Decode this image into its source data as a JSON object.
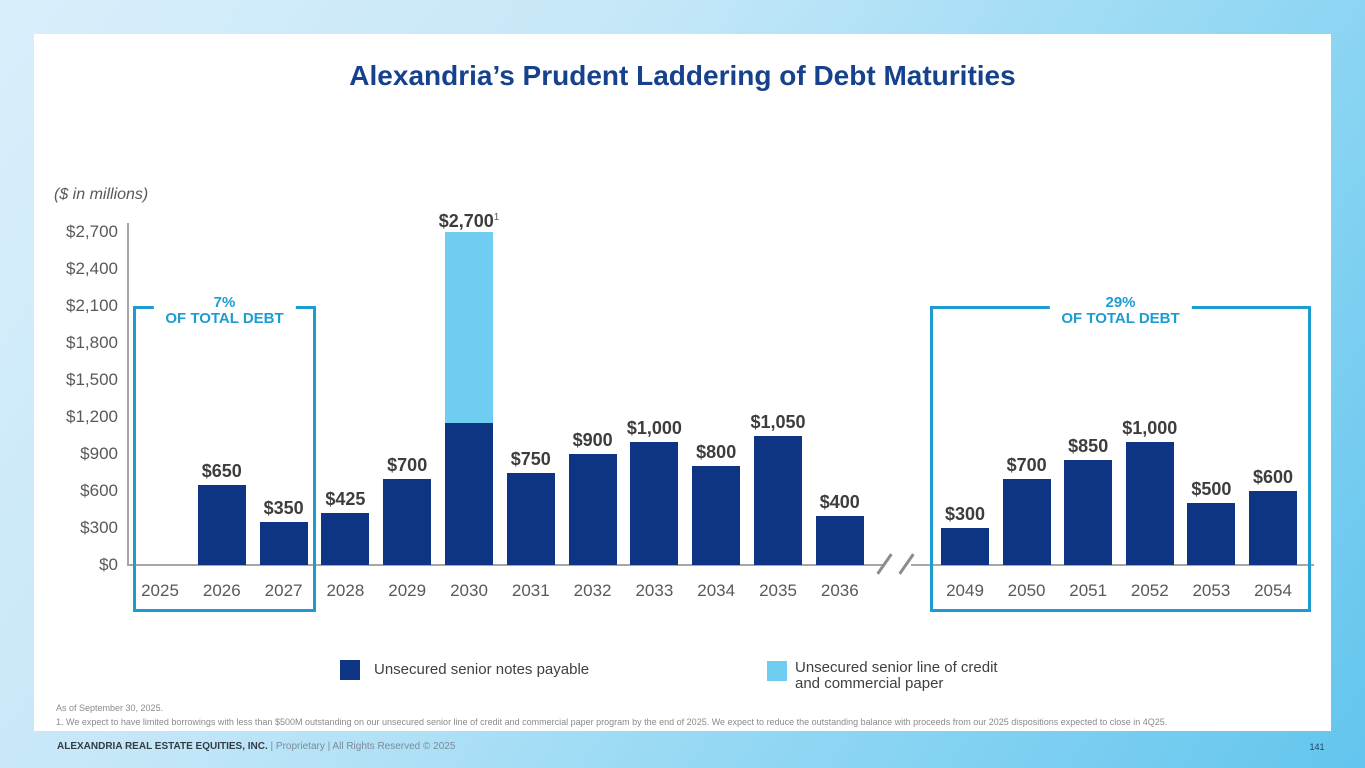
{
  "slide": {
    "title": "Alexandria’s Prudent Laddering of Debt Maturities",
    "units_label": "($ in millions)",
    "page_number": "141",
    "footer": {
      "company": "ALEXANDRIA REAL ESTATE EQUITIES, INC.",
      "rights": "| Proprietary | All Rights Reserved © 2025"
    },
    "footnotes": [
      "As of September 30, 2025.",
      "1.  We expect to have limited borrowings with less than $500M outstanding on our unsecured senior line of credit and commercial paper program by the end of 2025. We expect to reduce the outstanding balance with proceeds from our 2025 dispositions expected to close in 4Q25."
    ]
  },
  "colors": {
    "notes_bar": "#0e3583",
    "credit_bar": "#6fcdf2",
    "accent_bracket": "#1e9cd0",
    "title_text": "#16418c"
  },
  "legend": [
    {
      "label": "Unsecured senior notes payable",
      "color": "#0e3583"
    },
    {
      "lines": [
        "Unsecured senior line of credit",
        "and commercial paper"
      ],
      "color": "#6fcdf2"
    }
  ],
  "chart_data": {
    "type": "bar",
    "title": "Alexandria’s Prudent Laddering of Debt Maturities",
    "unit": "$ in millions",
    "ylim": [
      0,
      2700
    ],
    "y_tick_step": 300,
    "y_tick_labels": [
      "$2,700",
      "$2,400",
      "$2,100",
      "$1,800",
      "$1,500",
      "$1,200",
      "$900",
      "$600",
      "$300",
      "$0"
    ],
    "grid": "off",
    "legend_position": "bottom",
    "axis_break_between": [
      "2036",
      "2049"
    ],
    "series": [
      {
        "name": "Unsecured senior notes payable",
        "key": "notes",
        "color": "#0e3583"
      },
      {
        "name": "Unsecured senior line of credit and commercial paper",
        "key": "credit",
        "color": "#6fcdf2"
      }
    ],
    "groups": [
      {
        "bars": [
          {
            "year": "2025",
            "notes": 0,
            "credit": 0,
            "label": ""
          },
          {
            "year": "2026",
            "notes": 650,
            "credit": 0,
            "label": "$650"
          },
          {
            "year": "2027",
            "notes": 350,
            "credit": 0,
            "label": "$350"
          },
          {
            "year": "2028",
            "notes": 425,
            "credit": 0,
            "label": "$425"
          },
          {
            "year": "2029",
            "notes": 700,
            "credit": 0,
            "label": "$700"
          },
          {
            "year": "2030",
            "notes": 1150,
            "credit": 1550,
            "label": "$2,700",
            "label_superscript": "1"
          },
          {
            "year": "2031",
            "notes": 750,
            "credit": 0,
            "label": "$750"
          },
          {
            "year": "2032",
            "notes": 900,
            "credit": 0,
            "label": "$900"
          },
          {
            "year": "2033",
            "notes": 1000,
            "credit": 0,
            "label": "$1,000"
          },
          {
            "year": "2034",
            "notes": 800,
            "credit": 0,
            "label": "$800"
          },
          {
            "year": "2035",
            "notes": 1050,
            "credit": 0,
            "label": "$1,050"
          },
          {
            "year": "2036",
            "notes": 400,
            "credit": 0,
            "label": "$400"
          }
        ]
      },
      {
        "bars": [
          {
            "year": "2049",
            "notes": 300,
            "credit": 0,
            "label": "$300"
          },
          {
            "year": "2050",
            "notes": 700,
            "credit": 0,
            "label": "$700"
          },
          {
            "year": "2051",
            "notes": 850,
            "credit": 0,
            "label": "$850"
          },
          {
            "year": "2052",
            "notes": 1000,
            "credit": 0,
            "label": "$1,000"
          },
          {
            "year": "2053",
            "notes": 500,
            "credit": 0,
            "label": "$500"
          },
          {
            "year": "2054",
            "notes": 600,
            "credit": 0,
            "label": "$600"
          }
        ]
      }
    ],
    "annotations": [
      {
        "pct": "7%",
        "text": "OF TOTAL DEBT",
        "span": "2025–2027"
      },
      {
        "pct": "29%",
        "text": "OF TOTAL DEBT",
        "span": "2049–2054"
      }
    ]
  }
}
